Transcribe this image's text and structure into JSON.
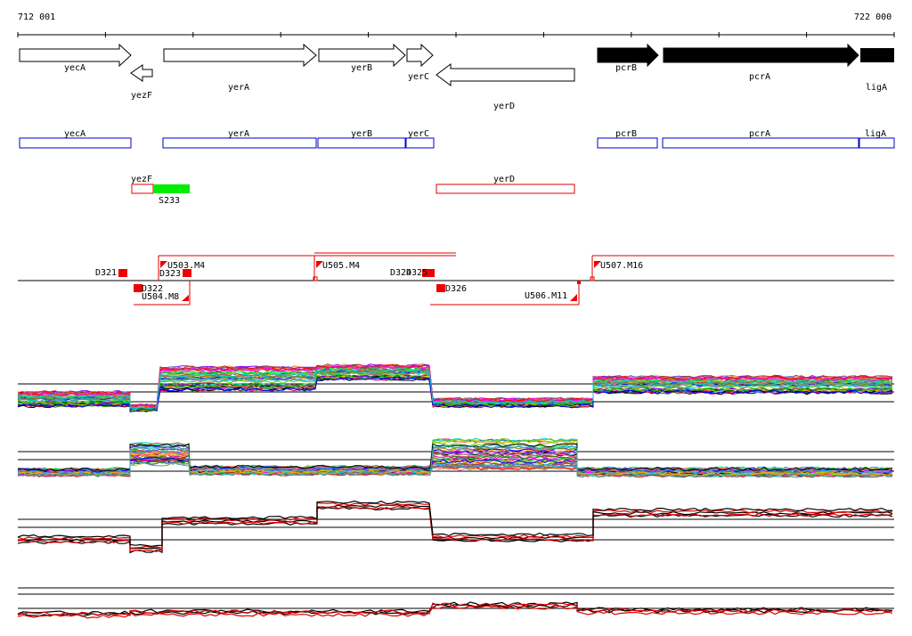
{
  "coords": {
    "start": "712 001",
    "end": "722 000"
  },
  "genes": [
    {
      "id": "yecA",
      "label": "yecA",
      "strand": "+",
      "filled": false
    },
    {
      "id": "yezF",
      "label": "yezF",
      "strand": "-",
      "filled": false
    },
    {
      "id": "yerA",
      "label": "yerA",
      "strand": "+",
      "filled": false
    },
    {
      "id": "yerB",
      "label": "yerB",
      "strand": "+",
      "filled": false
    },
    {
      "id": "yerC",
      "label": "yerC",
      "strand": "+",
      "filled": false
    },
    {
      "id": "yerD",
      "label": "yerD",
      "strand": "-",
      "filled": false
    },
    {
      "id": "pcrB",
      "label": "pcrB",
      "strand": "+",
      "filled": true
    },
    {
      "id": "pcrA",
      "label": "pcrA",
      "strand": "+",
      "filled": true
    },
    {
      "id": "ligA",
      "label": "ligA",
      "strand": "+",
      "filled": true
    }
  ],
  "features": {
    "blue": [
      "yecA",
      "yerA",
      "yerB",
      "yerC",
      "pcrB",
      "pcrA",
      "ligA"
    ],
    "red": [
      "yezF",
      "yerD"
    ],
    "green": [
      "S233"
    ]
  },
  "elements": {
    "downstream": [
      "D321",
      "D322",
      "D323",
      "D324",
      "D325",
      "D326"
    ],
    "upstream": [
      "U503.M4",
      "U504.M8",
      "U505.M4",
      "U506.M11",
      "U507.M16"
    ]
  },
  "colors": {
    "feature_blue": "#0000cc",
    "feature_red": "#e00000",
    "feature_green": "#00ee00",
    "marker_red": "#ee0000",
    "trace_black": "#000000",
    "trace_red": "#e00000"
  }
}
